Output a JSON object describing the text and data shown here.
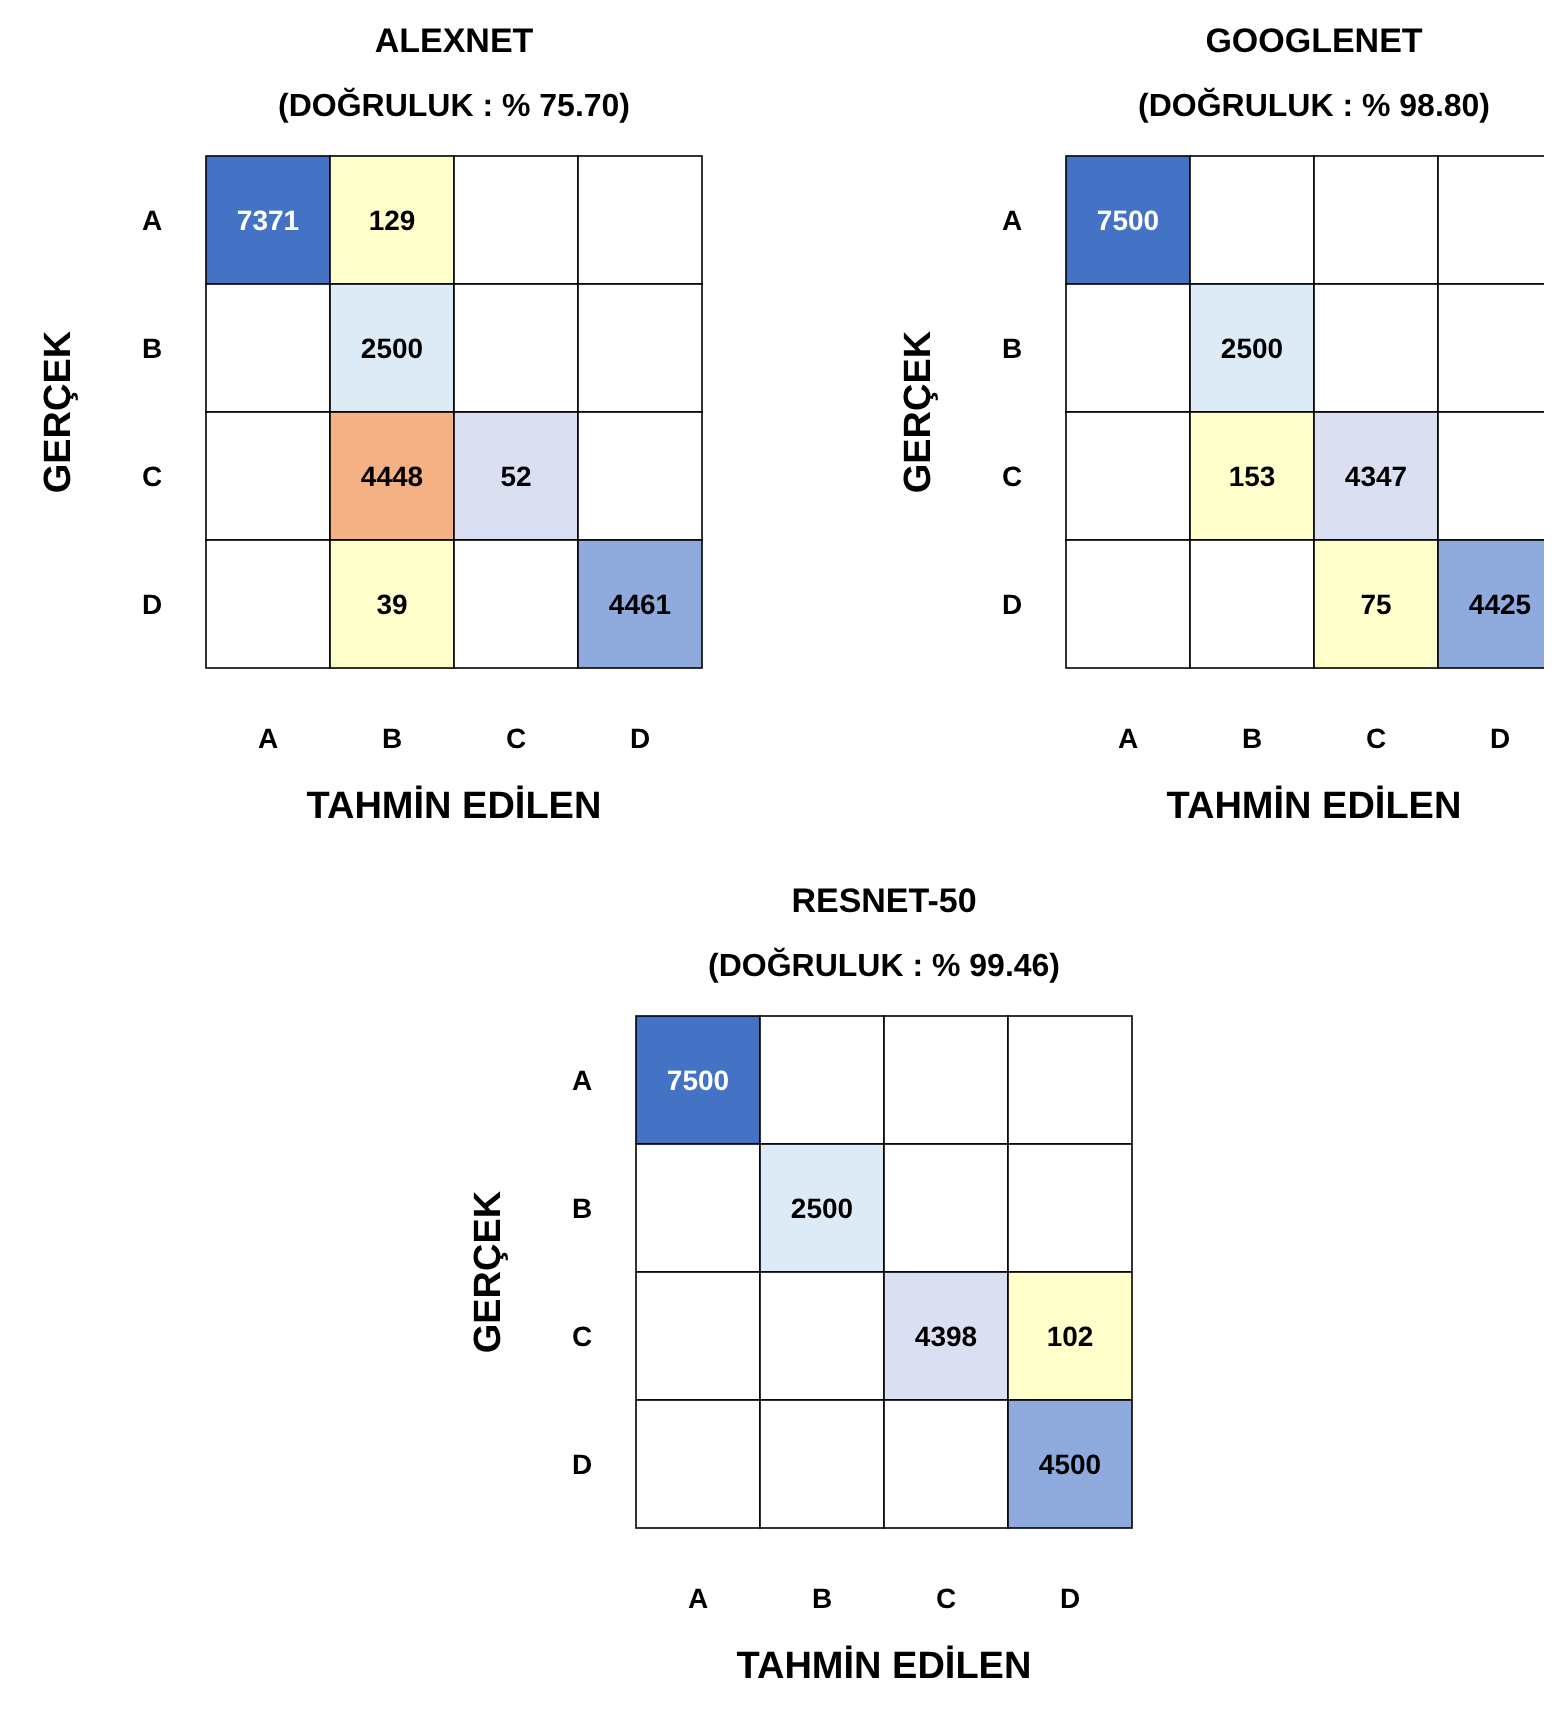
{
  "chart_data": [
    {
      "type": "heatmap",
      "data_labels": true,
      "title": "ALEXNET",
      "subtitle": "(DOĞRULUK : % 75.70)",
      "xlabel": "TAHMİN EDİLEN",
      "ylabel": "GERÇEK",
      "categories": [
        "A",
        "B",
        "C",
        "D"
      ],
      "y_categories": [
        "A",
        "B",
        "C",
        "D"
      ],
      "cells": [
        [
          7371,
          129,
          null,
          null
        ],
        [
          null,
          2500,
          null,
          null
        ],
        [
          null,
          4448,
          52,
          null
        ],
        [
          null,
          39,
          null,
          4461
        ]
      ],
      "colors": [
        [
          "#4472c4",
          "#ffffcc",
          null,
          null
        ],
        [
          null,
          "#ddebf7",
          null,
          null
        ],
        [
          null,
          "#f4b183",
          "#dae0f2",
          null
        ],
        [
          null,
          "#ffffcc",
          null,
          "#8faadc"
        ]
      ]
    },
    {
      "type": "heatmap",
      "data_labels": true,
      "title": "GOOGLENET",
      "subtitle": "(DOĞRULUK : % 98.80)",
      "xlabel": "TAHMİN EDİLEN",
      "ylabel": "GERÇEK",
      "categories": [
        "A",
        "B",
        "C",
        "D"
      ],
      "y_categories": [
        "A",
        "B",
        "C",
        "D"
      ],
      "cells": [
        [
          7500,
          null,
          null,
          null
        ],
        [
          null,
          2500,
          null,
          null
        ],
        [
          null,
          153,
          4347,
          null
        ],
        [
          null,
          null,
          75,
          4425
        ]
      ],
      "colors": [
        [
          "#4472c4",
          null,
          null,
          null
        ],
        [
          null,
          "#ddebf7",
          null,
          null
        ],
        [
          null,
          "#ffffcc",
          "#dae0f2",
          null
        ],
        [
          null,
          null,
          "#ffffcc",
          "#8faadc"
        ]
      ]
    },
    {
      "type": "heatmap",
      "data_labels": true,
      "title": "RESNET-50",
      "subtitle": "(DOĞRULUK : % 99.46)",
      "xlabel": "TAHMİN EDİLEN",
      "ylabel": "GERÇEK",
      "categories": [
        "A",
        "B",
        "C",
        "D"
      ],
      "y_categories": [
        "A",
        "B",
        "C",
        "D"
      ],
      "cells": [
        [
          7500,
          null,
          null,
          null
        ],
        [
          null,
          2500,
          null,
          null
        ],
        [
          null,
          null,
          4398,
          102
        ],
        [
          null,
          null,
          null,
          4500
        ]
      ],
      "colors": [
        [
          "#4472c4",
          null,
          null,
          null
        ],
        [
          null,
          "#ddebf7",
          null,
          null
        ],
        [
          null,
          null,
          "#dae0f2",
          "#ffffcc"
        ],
        [
          null,
          null,
          null,
          "#8faadc"
        ]
      ]
    }
  ]
}
